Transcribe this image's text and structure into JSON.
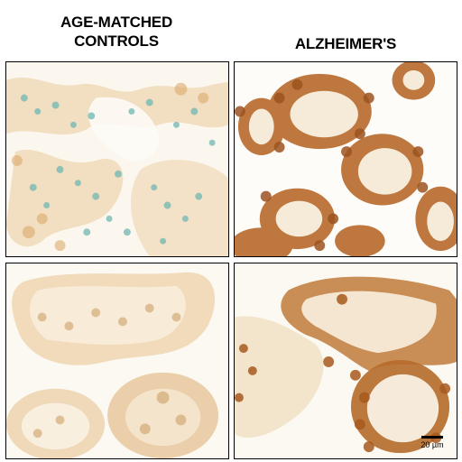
{
  "columns": {
    "left_title": "AGE-MATCHED\nCONTROLS",
    "right_title": "ALZHEIMER'S"
  },
  "scale_bar": {
    "label": "20 µm"
  },
  "panels": [
    {
      "id": "control-top",
      "stain": "light-brown",
      "accent": "#5fb3b0"
    },
    {
      "id": "ad-top",
      "stain": "dark-brown",
      "accent": "#a85a1e"
    },
    {
      "id": "control-bottom",
      "stain": "light-brown",
      "accent": "#caa57a"
    },
    {
      "id": "ad-bottom",
      "stain": "dark-brown",
      "accent": "#b0601f"
    }
  ]
}
